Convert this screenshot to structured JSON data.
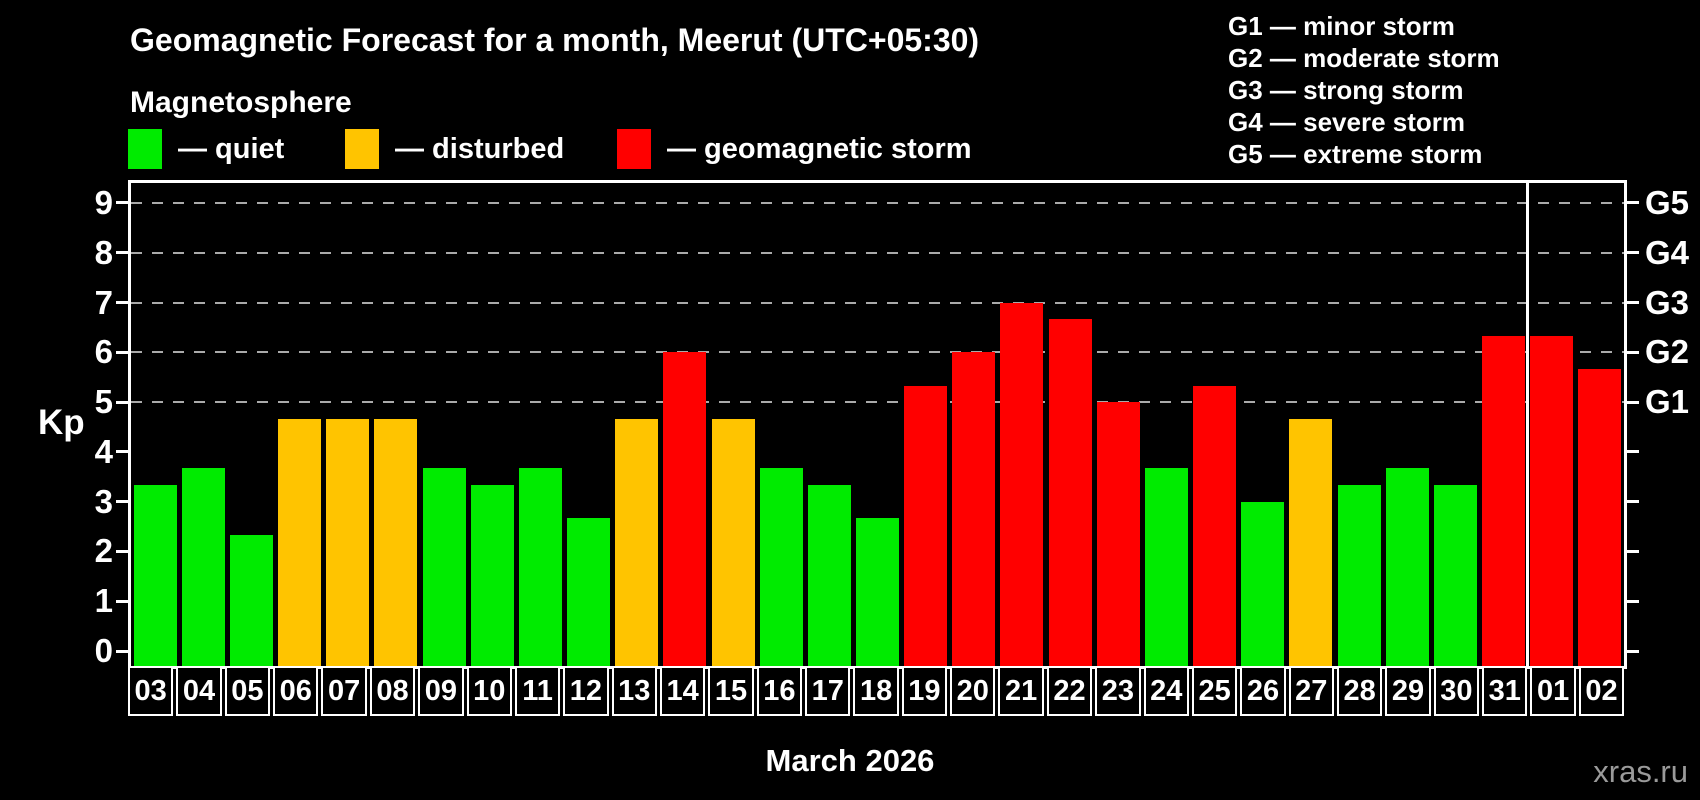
{
  "header": {
    "title": "Geomagnetic Forecast for a month, Meerut (UTC+05:30)",
    "subtitle": "Magnetosphere"
  },
  "legend": {
    "items": [
      {
        "label": "— quiet",
        "status": "quiet"
      },
      {
        "label": "— disturbed",
        "status": "disturbed"
      },
      {
        "label": "— geomagnetic storm",
        "status": "storm"
      }
    ]
  },
  "storm_scale_legend": {
    "lines": [
      "G1 — minor storm",
      "G2 — moderate storm",
      "G3 — strong storm",
      "G4 — severe storm",
      "G5 — extreme storm"
    ]
  },
  "colors": {
    "quiet": "#00EB00",
    "disturbed": "#FFC400",
    "storm": "#FF0000",
    "background": "#000000",
    "grid": "#AAAAAA",
    "frame": "#FFFFFF",
    "watermark": "#9A9A9A"
  },
  "chart_data": {
    "type": "bar",
    "title": "Geomagnetic Forecast for a month, Meerut (UTC+05:30)",
    "ylabel": "Kp",
    "xlabel": "March 2026",
    "ylim": [
      -0.3,
      9.4
    ],
    "y_ticks": [
      0,
      1,
      2,
      3,
      4,
      5,
      6,
      7,
      8,
      9
    ],
    "grid_kp": [
      5,
      6,
      7,
      8,
      9
    ],
    "right_axis_labels": [
      {
        "kp": 5,
        "label": "G1"
      },
      {
        "kp": 6,
        "label": "G2"
      },
      {
        "kp": 7,
        "label": "G3"
      },
      {
        "kp": 8,
        "label": "G4"
      },
      {
        "kp": 9,
        "label": "G5"
      }
    ],
    "categories": [
      "03",
      "04",
      "05",
      "06",
      "07",
      "08",
      "09",
      "10",
      "11",
      "12",
      "13",
      "14",
      "15",
      "16",
      "17",
      "18",
      "19",
      "20",
      "21",
      "22",
      "23",
      "24",
      "25",
      "26",
      "27",
      "28",
      "29",
      "30",
      "31",
      "01",
      "02"
    ],
    "values": [
      3.33,
      3.67,
      2.33,
      4.67,
      4.67,
      4.67,
      3.67,
      3.33,
      3.67,
      2.67,
      4.67,
      6.0,
      4.67,
      3.67,
      3.33,
      2.67,
      5.33,
      6.0,
      7.0,
      6.67,
      5.0,
      3.67,
      5.33,
      3.0,
      4.67,
      3.33,
      3.67,
      3.33,
      6.33,
      6.33,
      5.67
    ],
    "statuses": [
      "quiet",
      "quiet",
      "quiet",
      "disturbed",
      "disturbed",
      "disturbed",
      "quiet",
      "quiet",
      "quiet",
      "quiet",
      "disturbed",
      "storm",
      "disturbed",
      "quiet",
      "quiet",
      "quiet",
      "storm",
      "storm",
      "storm",
      "storm",
      "storm",
      "quiet",
      "storm",
      "quiet",
      "disturbed",
      "quiet",
      "quiet",
      "quiet",
      "storm",
      "storm",
      "storm"
    ],
    "month_separator_after": 29,
    "grid_on": true,
    "legend_position": "top"
  },
  "footer": {
    "x_axis_title": "March 2026",
    "watermark": "xras.ru"
  }
}
